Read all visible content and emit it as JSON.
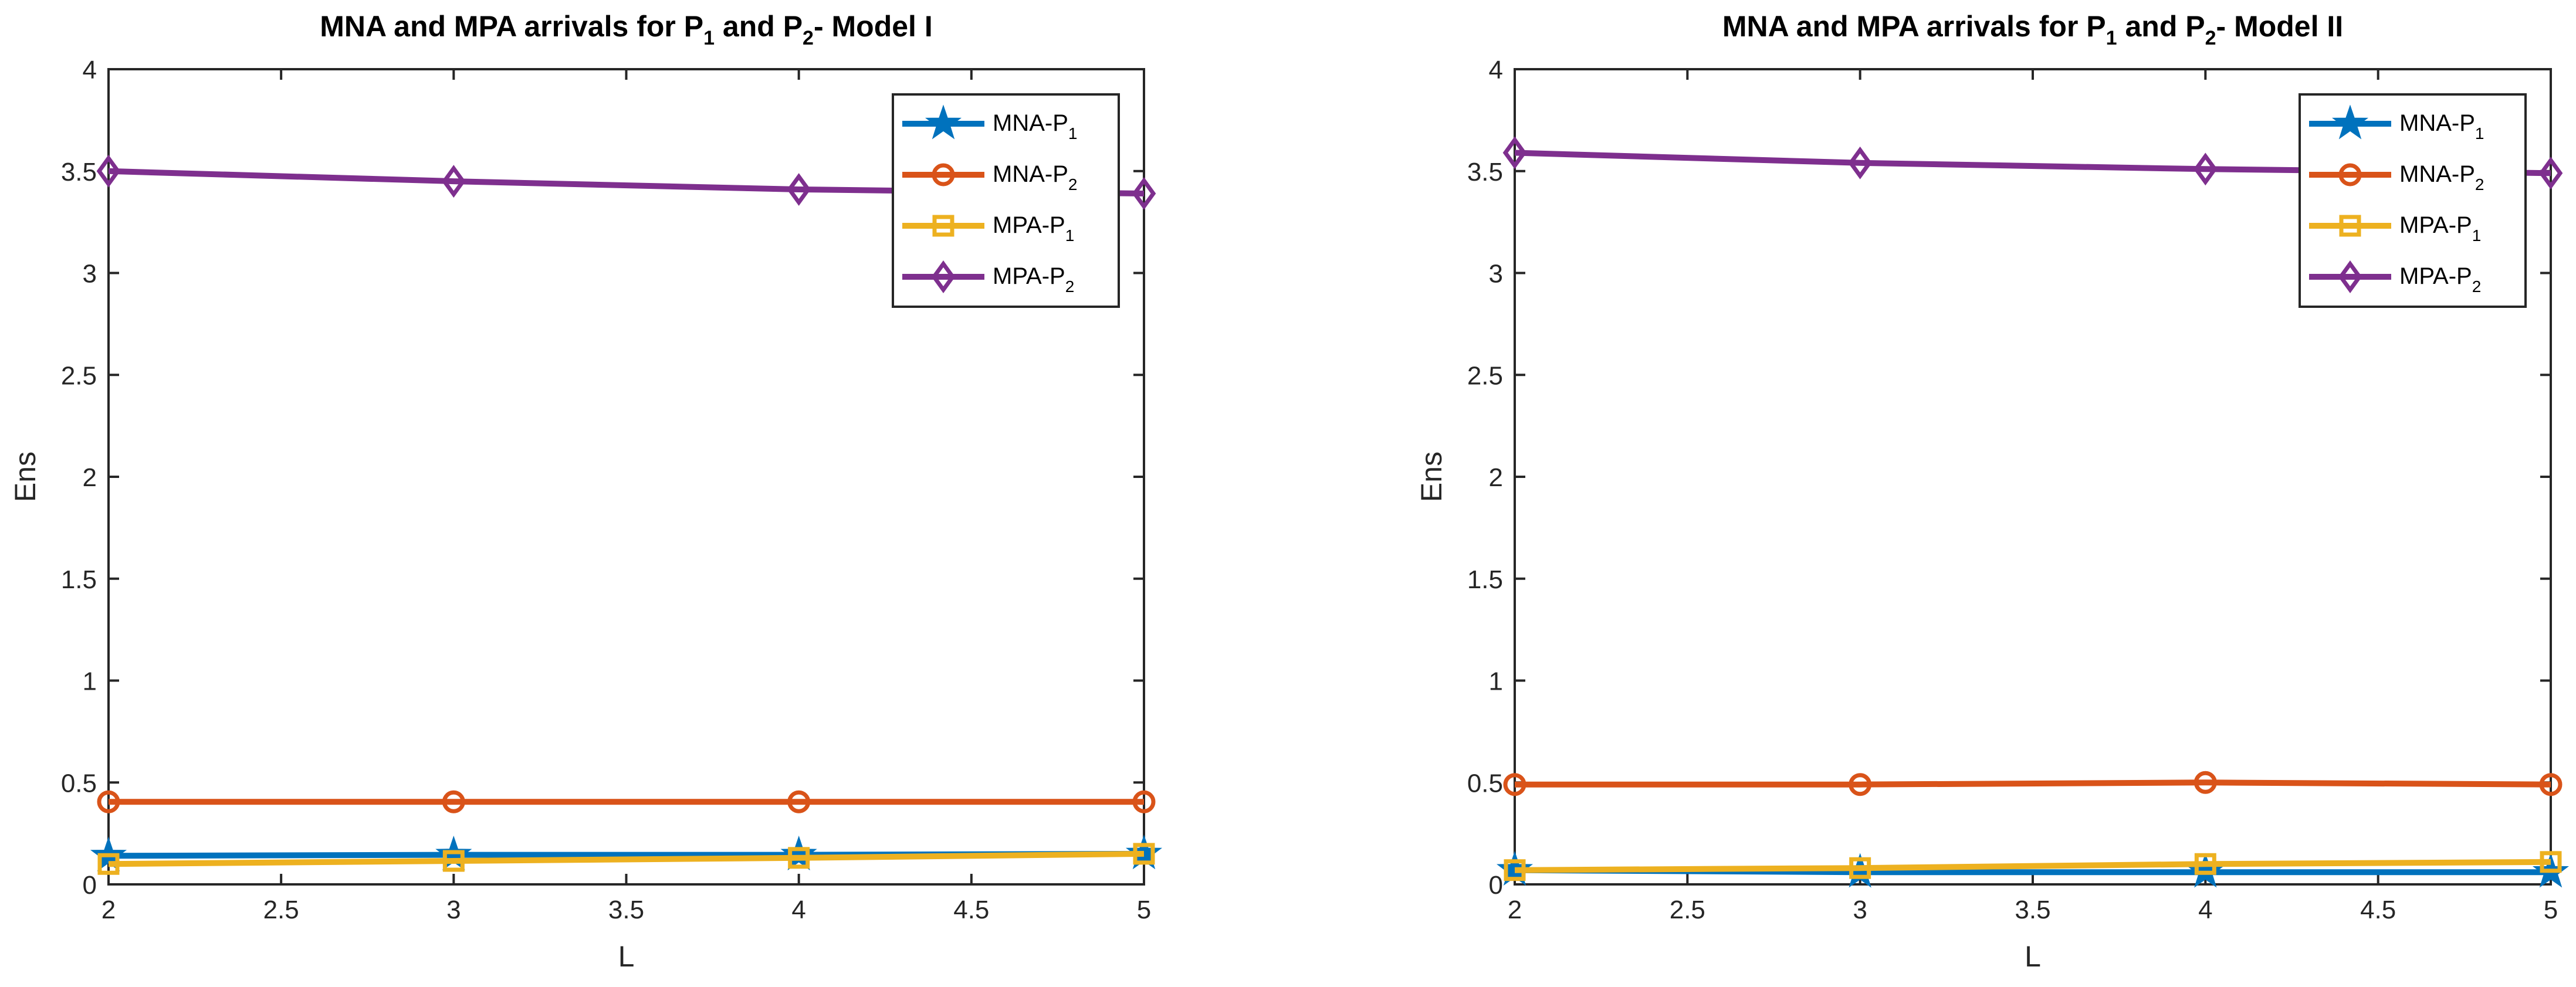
{
  "chart_data": [
    {
      "type": "line",
      "title_parts": [
        "MNA and MPA arrivals for P",
        "1",
        " and P",
        "2",
        "- Model I"
      ],
      "xlabel": "L",
      "ylabel": "Ens",
      "xlim": [
        2,
        5
      ],
      "ylim": [
        0,
        4
      ],
      "xticks": [
        "2",
        "2.5",
        "3",
        "3.5",
        "4",
        "4.5",
        "5"
      ],
      "yticks": [
        "0",
        "0.5",
        "1",
        "1.5",
        "2",
        "2.5",
        "3",
        "3.5",
        "4"
      ],
      "grid": false,
      "legend_position": "top-right",
      "x": [
        2,
        3,
        4,
        5
      ],
      "series": [
        {
          "name": "MNA-P",
          "sub": "1",
          "color": "#0072BD",
          "marker": "star",
          "values": [
            0.14,
            0.145,
            0.145,
            0.15
          ]
        },
        {
          "name": "MNA-P",
          "sub": "2",
          "color": "#D95319",
          "marker": "circle",
          "values": [
            0.405,
            0.405,
            0.405,
            0.405
          ]
        },
        {
          "name": "MPA-P",
          "sub": "1",
          "color": "#EDB120",
          "marker": "square",
          "values": [
            0.1,
            0.115,
            0.13,
            0.15
          ]
        },
        {
          "name": "MPA-P",
          "sub": "2",
          "color": "#7E2F8E",
          "marker": "diamond",
          "values": [
            3.5,
            3.45,
            3.41,
            3.39
          ]
        }
      ]
    },
    {
      "type": "line",
      "title_parts": [
        "MNA and MPA arrivals for P",
        "1",
        " and P",
        "2",
        "- Model II"
      ],
      "xlabel": "L",
      "ylabel": "Ens",
      "xlim": [
        2,
        5
      ],
      "ylim": [
        0,
        4
      ],
      "xticks": [
        "2",
        "2.5",
        "3",
        "3.5",
        "4",
        "4.5",
        "5"
      ],
      "yticks": [
        "0",
        "0.5",
        "1",
        "1.5",
        "2",
        "2.5",
        "3",
        "3.5",
        "4"
      ],
      "grid": false,
      "legend_position": "top-right",
      "x": [
        2,
        3,
        4,
        5
      ],
      "series": [
        {
          "name": "MNA-P",
          "sub": "1",
          "color": "#0072BD",
          "marker": "star",
          "values": [
            0.07,
            0.06,
            0.06,
            0.06
          ]
        },
        {
          "name": "MNA-P",
          "sub": "2",
          "color": "#D95319",
          "marker": "circle",
          "values": [
            0.49,
            0.49,
            0.5,
            0.49
          ]
        },
        {
          "name": "MPA-P",
          "sub": "1",
          "color": "#EDB120",
          "marker": "square",
          "values": [
            0.07,
            0.08,
            0.1,
            0.11
          ]
        },
        {
          "name": "MPA-P",
          "sub": "2",
          "color": "#7E2F8E",
          "marker": "diamond",
          "values": [
            3.59,
            3.54,
            3.51,
            3.49
          ]
        }
      ]
    }
  ]
}
